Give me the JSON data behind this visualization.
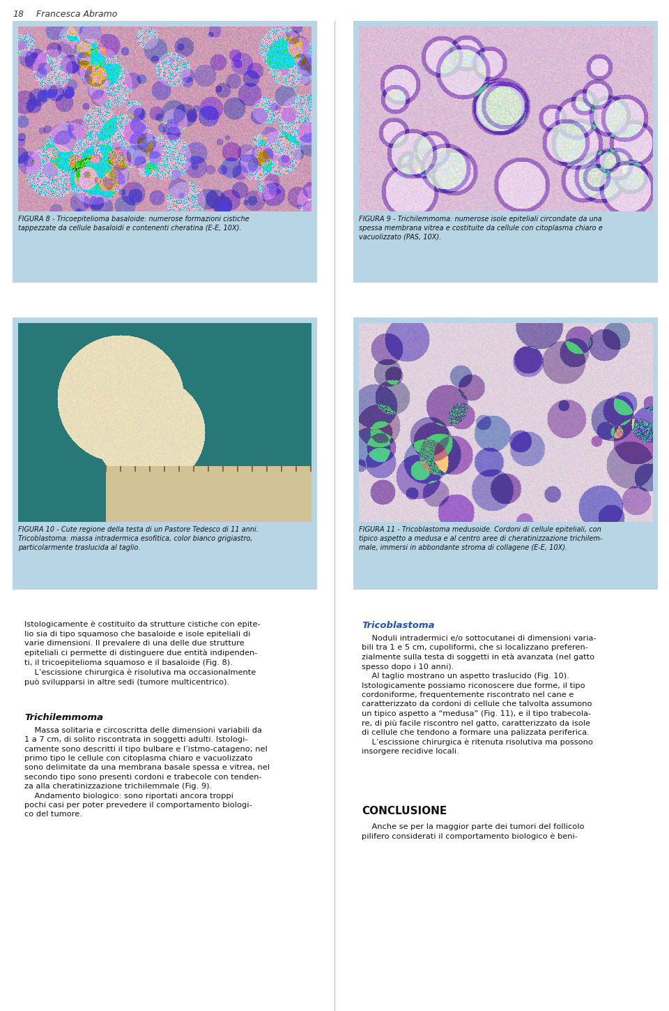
{
  "page_bg": "#ffffff",
  "header_num": "18",
  "header_name": "Francesca Abramo",
  "panel_bg": "#b8d5e5",
  "divider_color": "#888888",
  "fig8_caption": "FIGURA 8 - Tricoepitelioma basaloide: numerose formazioni cistiche\ntappezzate da cellule basaloidi e contenenti cheratina (E-E, 10X).",
  "fig9_caption": "FIGURA 9 - Trichilemmoma: numerose isole epiteliali circondate da una\nspessa membrana vitrea e costituite da cellule con citoplasma chiaro e\nvacuolizzato (PAS, 10X).",
  "fig10_caption": "FIGURA 10 - Cute regione della testa di un Pastore Tedesco di 11 anni.\nTricoblastoma: massa intradermica esofitica, color bianco grigiastro,\nparticolarmente traslucida al taglio.",
  "fig11_caption": "FIGURA 11 - Tricoblastoma medusoide. Cordoni di cellule epiteliali, con\ntipico aspetto a medusa e al centro aree di cheratinizzazione trichilem-\nmale, immersi in abbondante stroma di collagene (E-E, 10X).",
  "caption_fs": 7.0,
  "intro_text": "Istologicamente è costituito da strutture cistiche con epite-\nlio sia di tipo squamoso che basaloide e isole epiteliali di\nvarie dimensioni. Il prevalere di una delle due strutture\nepiteliali ci permette di distinguere due entità indipenden-\nti, il tricoepitelioma squamoso e il basaloide (Fig. 8).\n    L’escissione chirurgica è risolutiva ma occasionalmente\npuò svilupparsi in altre sedi (tumore multicentrico).",
  "trichilemmoma_title": "Trichilemmoma",
  "trichilemmoma_text": "    Massa solitaria e circoscritta delle dimensioni variabili da\n1 a 7 cm, di solito riscontrata in soggetti adulti. Istologi-\ncamente sono descritti il tipo bulbare e l’istmo-catageno; nel\nprimo tipo le cellule con citoplasma chiaro e vacuolizzato\nsono delimitate da una membrana basale spessa e vitrea, nel\nsecondo tipo sono presenti cordoni e trabecole con tenden-\nza alla cheratinizzazione trichilemmale (Fig. 9).\n    Andamento biologico: sono riportati ancora troppi\npochi casi per poter prevedere il comportamento biologi-\nco del tumore.",
  "tricoblastoma_title": "Tricoblastoma",
  "tricoblastoma_text": "    Noduli intradermici e/o sottocutanei di dimensioni varia-\nbili tra 1 e 5 cm, cupoliformi, che si localizzano preferen-\nzialmente sulla testa di soggetti in età avanzata (nel gatto\nspesso dopo i 10 anni).\n    Al taglio mostrano un aspetto traslucido (Fig. 10).\nIstologicamente possiamo riconoscere due forme, il tipo\ncordoniforme, frequentemente riscontrato nel cane e\ncaratterizzato da cordoni di cellule che talvolta assumono\nun tipico aspetto a “medusa” (Fig. 11), e il tipo trabecola-\nre, di più facile riscontro nel gatto, caratterizzato da isole\ndi cellule che tendono a formare una palizzata periferica.\n    L’escissione chirurgica è ritenuta risolutiva ma possono\ninsorgere recidive locali.",
  "conclusione_title": "CONCLUSIONE",
  "conclusione_text": "    Anche se per la maggior parte dei tumori del follicolo\npilifero considerati il comportamento biologico è beni-",
  "body_fs": 8.2,
  "title_fs": 9.5,
  "concl_title_fs": 11
}
